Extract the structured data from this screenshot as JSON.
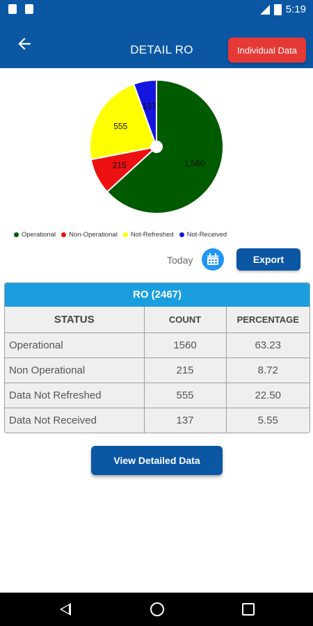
{
  "status_bar": {
    "time": "5:19"
  },
  "app_bar": {
    "title": "DETAIL RO",
    "individual_button": "Individual Data"
  },
  "chart_data": {
    "type": "pie",
    "slices": [
      {
        "name": "Operational",
        "value": 1560,
        "label": "1,560",
        "color": "#005a00"
      },
      {
        "name": "Non-Operational",
        "value": 215,
        "label": "215",
        "color": "#ee1111"
      },
      {
        "name": "Not-Refreshed",
        "value": 555,
        "label": "555",
        "color": "#ffff00"
      },
      {
        "name": "Not-Received",
        "value": 137,
        "label": "137",
        "color": "#1515e0"
      }
    ],
    "legend_position": "bottom"
  },
  "legend": [
    {
      "label": "Operational",
      "color": "#005a00"
    },
    {
      "label": "Non-Operational",
      "color": "#ee1111"
    },
    {
      "label": "Not-Refreshed",
      "color": "#ffff00"
    },
    {
      "label": "Not-Received",
      "color": "#1515e0"
    }
  ],
  "controls": {
    "today_label": "Today",
    "export_button": "Export",
    "calendar_icon": "calendar-icon"
  },
  "table": {
    "title": "RO (2467)",
    "headers": [
      "STATUS",
      "COUNT",
      "PERCENTAGE"
    ],
    "rows": [
      {
        "status": "Operational",
        "count": "1560",
        "percentage": "63.23"
      },
      {
        "status": "Non Operational",
        "count": "215",
        "percentage": "8.72"
      },
      {
        "status": "Data Not Refreshed",
        "count": "555",
        "percentage": "22.50"
      },
      {
        "status": "Data Not Received",
        "count": "137",
        "percentage": "5.55"
      }
    ]
  },
  "view_button": "View Detailed Data",
  "colors": {
    "primary": "#0b57a4",
    "accent_red": "#e53935",
    "table_header": "#1a9ee0"
  }
}
